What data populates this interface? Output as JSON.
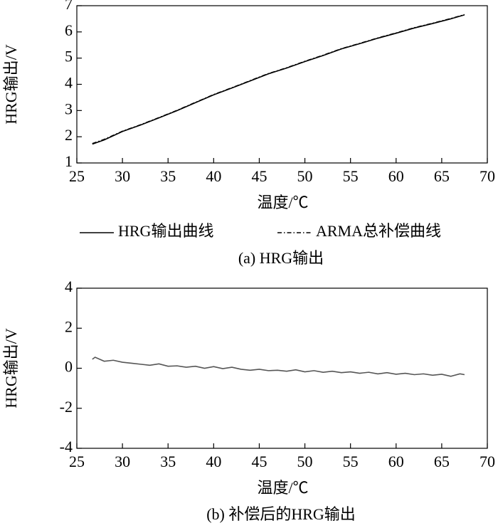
{
  "chart_data": [
    {
      "type": "line",
      "caption": "(a) HRG输出",
      "xlabel": "温度/℃",
      "ylabel": "HRG输出/V",
      "xlim": [
        25,
        70
      ],
      "xticks": [
        25,
        30,
        35,
        40,
        45,
        50,
        55,
        60,
        65,
        70
      ],
      "ylim": [
        1,
        7
      ],
      "yticks": [
        1,
        2,
        3,
        4,
        5,
        6,
        7
      ],
      "x": [
        26.7,
        28,
        30,
        32,
        34,
        36,
        38,
        40,
        42,
        44,
        46,
        48,
        50,
        52,
        54,
        56,
        58,
        60,
        62,
        64,
        66,
        67.5
      ],
      "series": [
        {
          "name": "HRG输出曲线",
          "color": "#000000",
          "line_style": "solid",
          "values": [
            1.72,
            1.88,
            2.2,
            2.45,
            2.72,
            3.0,
            3.3,
            3.6,
            3.86,
            4.13,
            4.4,
            4.62,
            4.87,
            5.1,
            5.35,
            5.55,
            5.76,
            5.95,
            6.15,
            6.32,
            6.5,
            6.65
          ]
        },
        {
          "name": "ARMA总补偿曲线",
          "color": "#000000",
          "line_style": "dashdot",
          "values": [
            1.74,
            1.9,
            2.21,
            2.46,
            2.73,
            3.01,
            3.31,
            3.61,
            3.87,
            4.14,
            4.41,
            4.63,
            4.88,
            5.11,
            5.36,
            5.56,
            5.77,
            5.96,
            6.16,
            6.33,
            6.51,
            6.66
          ]
        }
      ]
    },
    {
      "type": "line",
      "caption": "(b) 补偿后的HRG输出",
      "xlabel": "温度/℃",
      "ylabel": "HRG输出/V",
      "xlim": [
        25,
        70
      ],
      "xticks": [
        25,
        30,
        35,
        40,
        45,
        50,
        55,
        60,
        65,
        70
      ],
      "ylim": [
        -4,
        4
      ],
      "yticks": [
        -4,
        -2,
        0,
        2,
        4
      ],
      "x": [
        26.7,
        27,
        28,
        29,
        30,
        31,
        32,
        33,
        34,
        35,
        36,
        37,
        38,
        39,
        40,
        41,
        42,
        43,
        44,
        45,
        46,
        47,
        48,
        49,
        50,
        51,
        52,
        53,
        54,
        55,
        56,
        57,
        58,
        59,
        60,
        61,
        62,
        63,
        64,
        65,
        66,
        67,
        67.5
      ],
      "series": [
        {
          "color": "#555555",
          "line_style": "solid",
          "values": [
            0.45,
            0.55,
            0.35,
            0.4,
            0.3,
            0.25,
            0.2,
            0.15,
            0.22,
            0.1,
            0.12,
            0.05,
            0.1,
            0.0,
            0.08,
            -0.02,
            0.05,
            -0.05,
            -0.1,
            -0.05,
            -0.12,
            -0.1,
            -0.15,
            -0.08,
            -0.18,
            -0.12,
            -0.2,
            -0.15,
            -0.22,
            -0.18,
            -0.25,
            -0.2,
            -0.28,
            -0.22,
            -0.3,
            -0.25,
            -0.32,
            -0.28,
            -0.35,
            -0.3,
            -0.4,
            -0.28,
            -0.32
          ]
        }
      ]
    }
  ]
}
